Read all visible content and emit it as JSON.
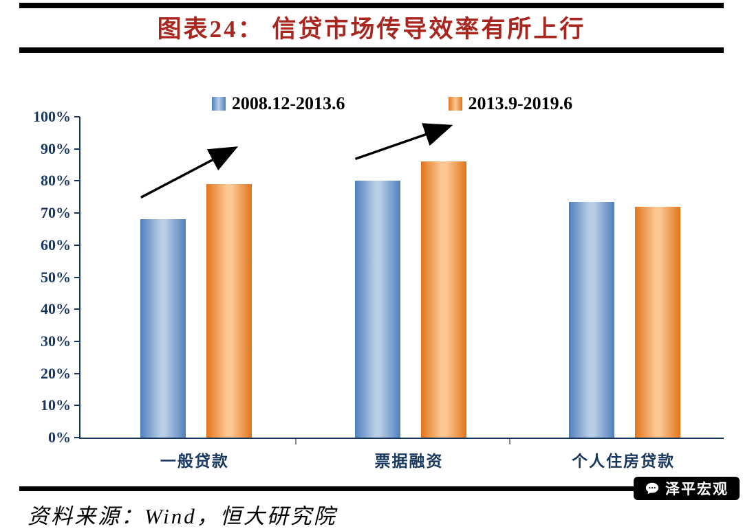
{
  "header": {
    "title": "图表24： 信贷市场传导效率有所上行"
  },
  "footer": {
    "source": "资料来源：Wind，恒大研究院",
    "brand": "泽平宏观",
    "brand_icon": "chat-bubble-icon"
  },
  "colors": {
    "title_red": "#A8261E",
    "axis_navy": "#17375E",
    "rule_black": "#000000",
    "series1_blue": "#4F81BD",
    "series2_orange": "#E2751D"
  },
  "chart_data": {
    "type": "bar",
    "title": "图表24： 信贷市场传导效率有所上行",
    "categories": [
      "一般贷款",
      "票据融资",
      "个人住房贷款"
    ],
    "series": [
      {
        "name": "2008.12-2013.6",
        "color": "#4F81BD",
        "color_light": "#B9CDE5",
        "values": [
          68,
          80,
          73.5
        ]
      },
      {
        "name": "2013.9-2019.6",
        "color": "#E2751D",
        "color_light": "#FBC893",
        "values": [
          79,
          86,
          72
        ]
      }
    ],
    "ylim": [
      0,
      100
    ],
    "ytick_labels": [
      "100%",
      "90%",
      "80%",
      "70%",
      "60%",
      "50%",
      "40%",
      "30%",
      "20%",
      "10%",
      "0%"
    ],
    "xlabel": "",
    "ylabel": "",
    "grid": false,
    "legend_position": "top-center",
    "annotations": [
      {
        "shape": "up-arrow",
        "over_category": "一般贷款"
      },
      {
        "shape": "up-arrow",
        "over_category": "票据融资"
      }
    ]
  }
}
